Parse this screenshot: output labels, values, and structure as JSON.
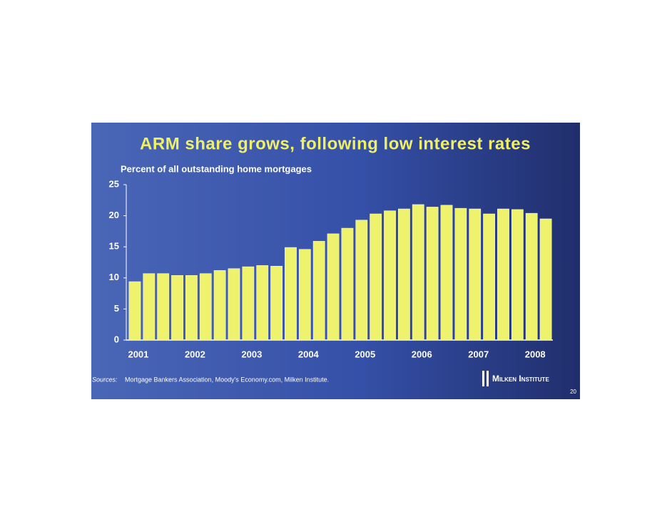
{
  "chart_data": {
    "type": "bar",
    "title": "ARM share grows, following low interest rates",
    "subtitle": "Percent of all outstanding home mortgages",
    "categories": [
      "2001",
      null,
      null,
      null,
      "2002",
      null,
      null,
      null,
      "2003",
      null,
      null,
      null,
      "2004",
      null,
      null,
      null,
      "2005",
      null,
      null,
      null,
      "2006",
      null,
      null,
      null,
      "2007",
      null,
      null,
      null,
      "2008",
      null
    ],
    "values": [
      9.4,
      10.7,
      10.7,
      10.4,
      10.4,
      10.7,
      11.2,
      11.5,
      11.8,
      12.0,
      11.9,
      14.9,
      14.6,
      15.9,
      17.1,
      18.0,
      19.3,
      20.3,
      20.8,
      21.1,
      21.8,
      21.4,
      21.7,
      21.2,
      21.1,
      20.3,
      21.1,
      21.0,
      20.4,
      19.5
    ],
    "color": "#eef26c",
    "ylim": [
      0,
      25
    ],
    "yticks": [
      0,
      5,
      10,
      15,
      20,
      25
    ],
    "grid": false,
    "source_label": "Sources:",
    "source": "Mortgage Bankers Association, Moody's Economy.com, Milken Institute.",
    "logo_text": "Milken Institute",
    "page_number": "20"
  }
}
